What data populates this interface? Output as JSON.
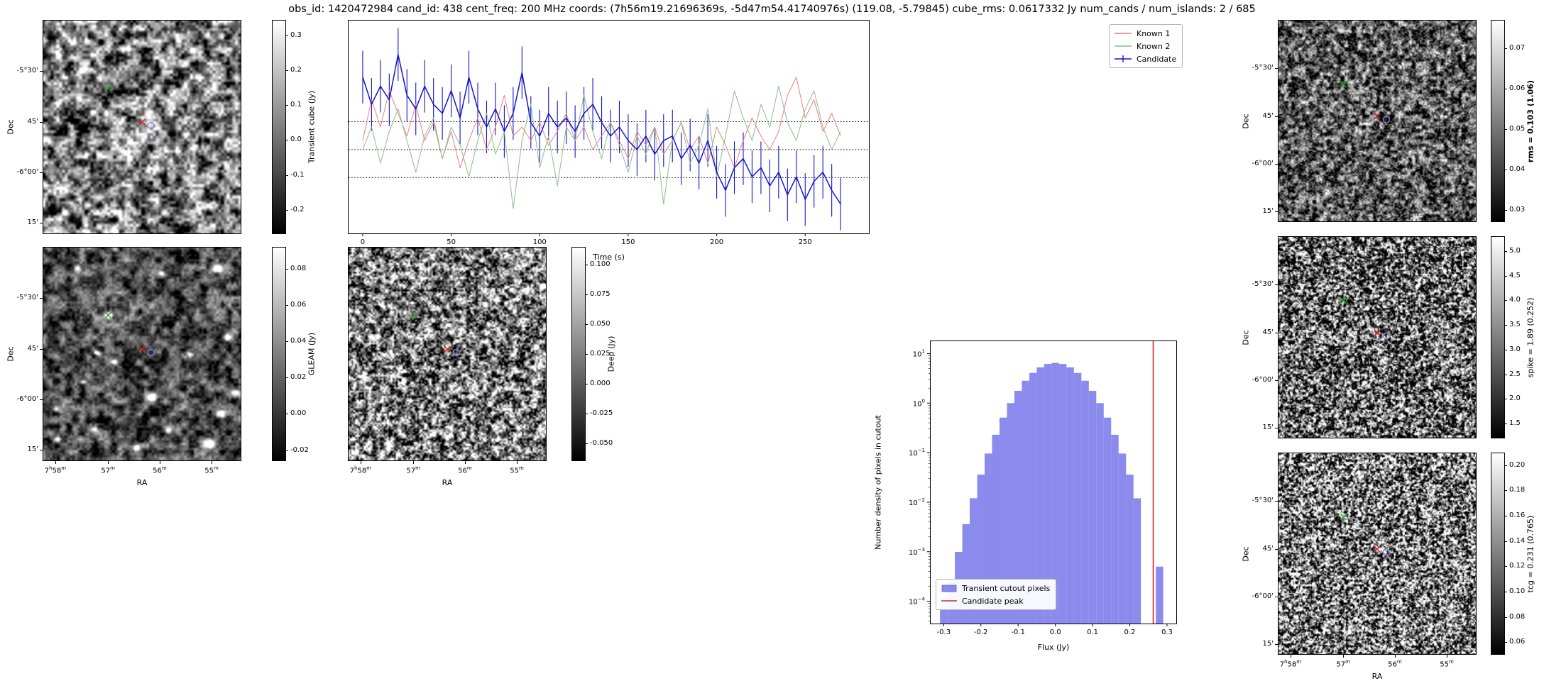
{
  "title": "obs_id: 1420472984 cand_id: 438 cent_freq: 200 MHz coords: (7h56m19.21696369s, -5d47m54.41740976s) (119.08, -5.79845) cube_rms: 0.0617332 Jy num_cands / num_islands: 2 / 685",
  "axes": {
    "dec_label": "Dec",
    "ra_label": "RA",
    "dec_ticks": [
      "-5°30'",
      "45'",
      "-6°00'",
      "15'"
    ],
    "ra_ticks": [
      "7h58m",
      "57m",
      "56m",
      "55m"
    ]
  },
  "colorbars": {
    "transient": {
      "label": "Transient cube (Jy)",
      "bold": false,
      "vmin": -0.27,
      "vmax": 0.345,
      "tick_vals": [
        0.3,
        0.2,
        0.1,
        0.0,
        -0.1,
        -0.2
      ],
      "tick_labels": [
        "0.3",
        "0.2",
        "0.1",
        "0.0",
        "-0.1",
        "-0.2"
      ]
    },
    "gleam": {
      "label": "GLEAM (Jy)",
      "bold": false,
      "vmin": -0.026,
      "vmax": 0.092,
      "tick_vals": [
        0.08,
        0.06,
        0.04,
        0.02,
        0.0,
        -0.02
      ],
      "tick_labels": [
        "0.08",
        "0.06",
        "0.04",
        "0.02",
        "0.00",
        "-0.02"
      ]
    },
    "deep": {
      "label": "Deep (Jy)",
      "bold": false,
      "vmin": -0.065,
      "vmax": 0.115,
      "tick_vals": [
        0.1,
        0.075,
        0.05,
        0.025,
        0.0,
        -0.025,
        -0.05
      ],
      "tick_labels": [
        "0.100",
        "0.075",
        "0.050",
        "0.025",
        "0.000",
        "-0.025",
        "-0.050"
      ]
    },
    "rms": {
      "label": "rms = 0.103 (1.06)",
      "bold": true,
      "vmin": 0.027,
      "vmax": 0.077,
      "tick_vals": [
        0.07,
        0.06,
        0.05,
        0.04,
        0.03
      ],
      "tick_labels": [
        "0.07",
        "0.06",
        "0.05",
        "0.04",
        "0.03"
      ]
    },
    "spike": {
      "label": "spike = 1.89 (0.252)",
      "bold": false,
      "vmin": 1.2,
      "vmax": 5.3,
      "tick_vals": [
        5.0,
        4.5,
        4.0,
        3.5,
        3.0,
        2.5,
        2.0,
        1.5
      ],
      "tick_labels": [
        "5.0",
        "4.5",
        "4.0",
        "3.5",
        "3.0",
        "2.5",
        "2.0",
        "1.5"
      ]
    },
    "tcg": {
      "label": "tcg = 0.231 (0.765)",
      "bold": false,
      "vmin": 0.05,
      "vmax": 0.21,
      "tick_vals": [
        0.2,
        0.18,
        0.16,
        0.14,
        0.12,
        0.1,
        0.08,
        0.06
      ],
      "tick_labels": [
        "0.20",
        "0.18",
        "0.16",
        "0.14",
        "0.12",
        "0.10",
        "0.08",
        "0.06"
      ]
    }
  },
  "markers": {
    "known1": {
      "shape": "x",
      "color": "#d62728",
      "fx": 0.5,
      "fy": 0.477
    },
    "known2": {
      "shape": "x",
      "color": "#2ca02c",
      "fx": 0.329,
      "fy": 0.318
    },
    "candidate": {
      "shape": "circle",
      "color": "#8585d5",
      "fx": 0.546,
      "fy": 0.493
    }
  },
  "chart_data": [
    {
      "type": "line",
      "title": "",
      "xlabel": "Time (s)",
      "ylabel": "",
      "xlim": [
        -8,
        286
      ],
      "ylim": [
        -0.185,
        0.285
      ],
      "xticks": [
        0,
        50,
        100,
        150,
        200,
        250
      ],
      "hlines": [
        0.0617332,
        0.0,
        -0.0617332
      ],
      "legend_position": "upper right (figure)",
      "x": [
        0,
        5,
        10,
        15,
        20,
        25,
        30,
        35,
        40,
        45,
        50,
        55,
        60,
        65,
        70,
        75,
        80,
        85,
        90,
        95,
        100,
        105,
        110,
        115,
        120,
        125,
        130,
        135,
        140,
        145,
        150,
        155,
        160,
        165,
        170,
        175,
        180,
        185,
        190,
        195,
        200,
        205,
        210,
        215,
        220,
        225,
        230,
        235,
        240,
        245,
        250,
        255,
        260,
        265,
        270
      ],
      "series": [
        {
          "name": "Known 1",
          "color": "#e88080",
          "values": [
            0.02,
            0.11,
            0.05,
            0.13,
            0.08,
            0.03,
            0.1,
            0.02,
            0.06,
            -0.02,
            0.04,
            -0.04,
            0.02,
            0.07,
            0.0,
            0.05,
            0.12,
            0.03,
            0.05,
            0.02,
            0.06,
            0.01,
            0.04,
            0.08,
            0.02,
            0.05,
            0.0,
            0.03,
            0.06,
            0.02,
            -0.02,
            0.04,
            0.01,
            0.05,
            -0.01,
            0.02,
            0.06,
            0.0,
            0.03,
            -0.03,
            0.05,
            0.01,
            -0.04,
            0.02,
            0.07,
            0.03,
            0.0,
            0.04,
            0.12,
            0.16,
            0.07,
            0.11,
            0.04,
            0.08,
            0.03
          ]
        },
        {
          "name": "Known 2",
          "color": "#8dbb8d",
          "values": [
            0.0,
            0.05,
            -0.03,
            0.04,
            0.09,
            0.02,
            -0.05,
            0.03,
            0.07,
            -0.02,
            0.05,
            0.01,
            -0.06,
            0.02,
            0.08,
            -0.01,
            0.04,
            -0.13,
            0.02,
            0.1,
            -0.04,
            0.03,
            -0.08,
            0.05,
            0.02,
            0.12,
            0.04,
            -0.02,
            0.06,
            0.01,
            -0.05,
            0.03,
            -0.01,
            0.05,
            -0.12,
            0.02,
            0.06,
            -0.03,
            0.01,
            0.09,
            -0.06,
            0.03,
            0.13,
            0.07,
            0.02,
            0.1,
            0.05,
            0.14,
            0.06,
            0.02,
            0.09,
            0.13,
            0.05,
            0.0,
            0.04
          ]
        },
        {
          "name": "Candidate",
          "color": "#1414cd",
          "yerr": 0.058,
          "values": [
            0.16,
            0.1,
            0.14,
            0.11,
            0.21,
            0.12,
            0.09,
            0.14,
            0.1,
            0.08,
            0.13,
            0.07,
            0.16,
            0.09,
            0.05,
            0.09,
            0.04,
            0.08,
            0.17,
            0.06,
            0.03,
            0.08,
            0.05,
            0.07,
            0.04,
            0.08,
            0.1,
            0.06,
            0.03,
            0.05,
            0.02,
            0.0,
            0.03,
            -0.01,
            0.02,
            0.03,
            -0.02,
            0.01,
            -0.03,
            0.02,
            -0.05,
            -0.09,
            -0.04,
            -0.02,
            -0.06,
            -0.04,
            -0.08,
            -0.05,
            -0.1,
            -0.06,
            -0.11,
            -0.07,
            -0.05,
            -0.09,
            -0.12
          ]
        }
      ]
    },
    {
      "type": "bar",
      "title": "",
      "xlabel": "Flux (Jy)",
      "ylabel": "Number density of pixels in cutout",
      "xlim": [
        -0.335,
        0.325
      ],
      "ylog": true,
      "ylim_exp": [
        -4.45,
        1.25
      ],
      "xticks": [
        -0.3,
        -0.2,
        -0.1,
        0.0,
        0.1,
        0.2,
        0.3
      ],
      "ytick_exps": [
        1,
        0,
        -1,
        -2,
        -3,
        -4
      ],
      "bar_color": "#7b7beb",
      "bin_width": 0.02,
      "centers": [
        -0.3,
        -0.28,
        -0.26,
        -0.24,
        -0.22,
        -0.2,
        -0.18,
        -0.16,
        -0.14,
        -0.12,
        -0.1,
        -0.08,
        -0.06,
        -0.04,
        -0.02,
        0.0,
        0.02,
        0.04,
        0.06,
        0.08,
        0.1,
        0.12,
        0.14,
        0.16,
        0.18,
        0.2,
        0.22,
        0.24,
        0.26,
        0.28
      ],
      "densities": [
        8e-05,
        0.00024,
        0.00099,
        0.0036,
        0.012,
        0.036,
        0.096,
        0.23,
        0.51,
        1.0,
        1.77,
        2.83,
        4.07,
        5.28,
        6.17,
        6.5,
        6.17,
        5.28,
        4.07,
        2.83,
        1.77,
        1.0,
        0.51,
        0.23,
        0.096,
        0.036,
        0.012,
        0,
        0,
        0.0005
      ],
      "vline": {
        "label": "Candidate peak",
        "x": 0.263,
        "color": "#d62728"
      },
      "legend": [
        "Transient cutout pixels",
        "Candidate peak"
      ]
    }
  ]
}
